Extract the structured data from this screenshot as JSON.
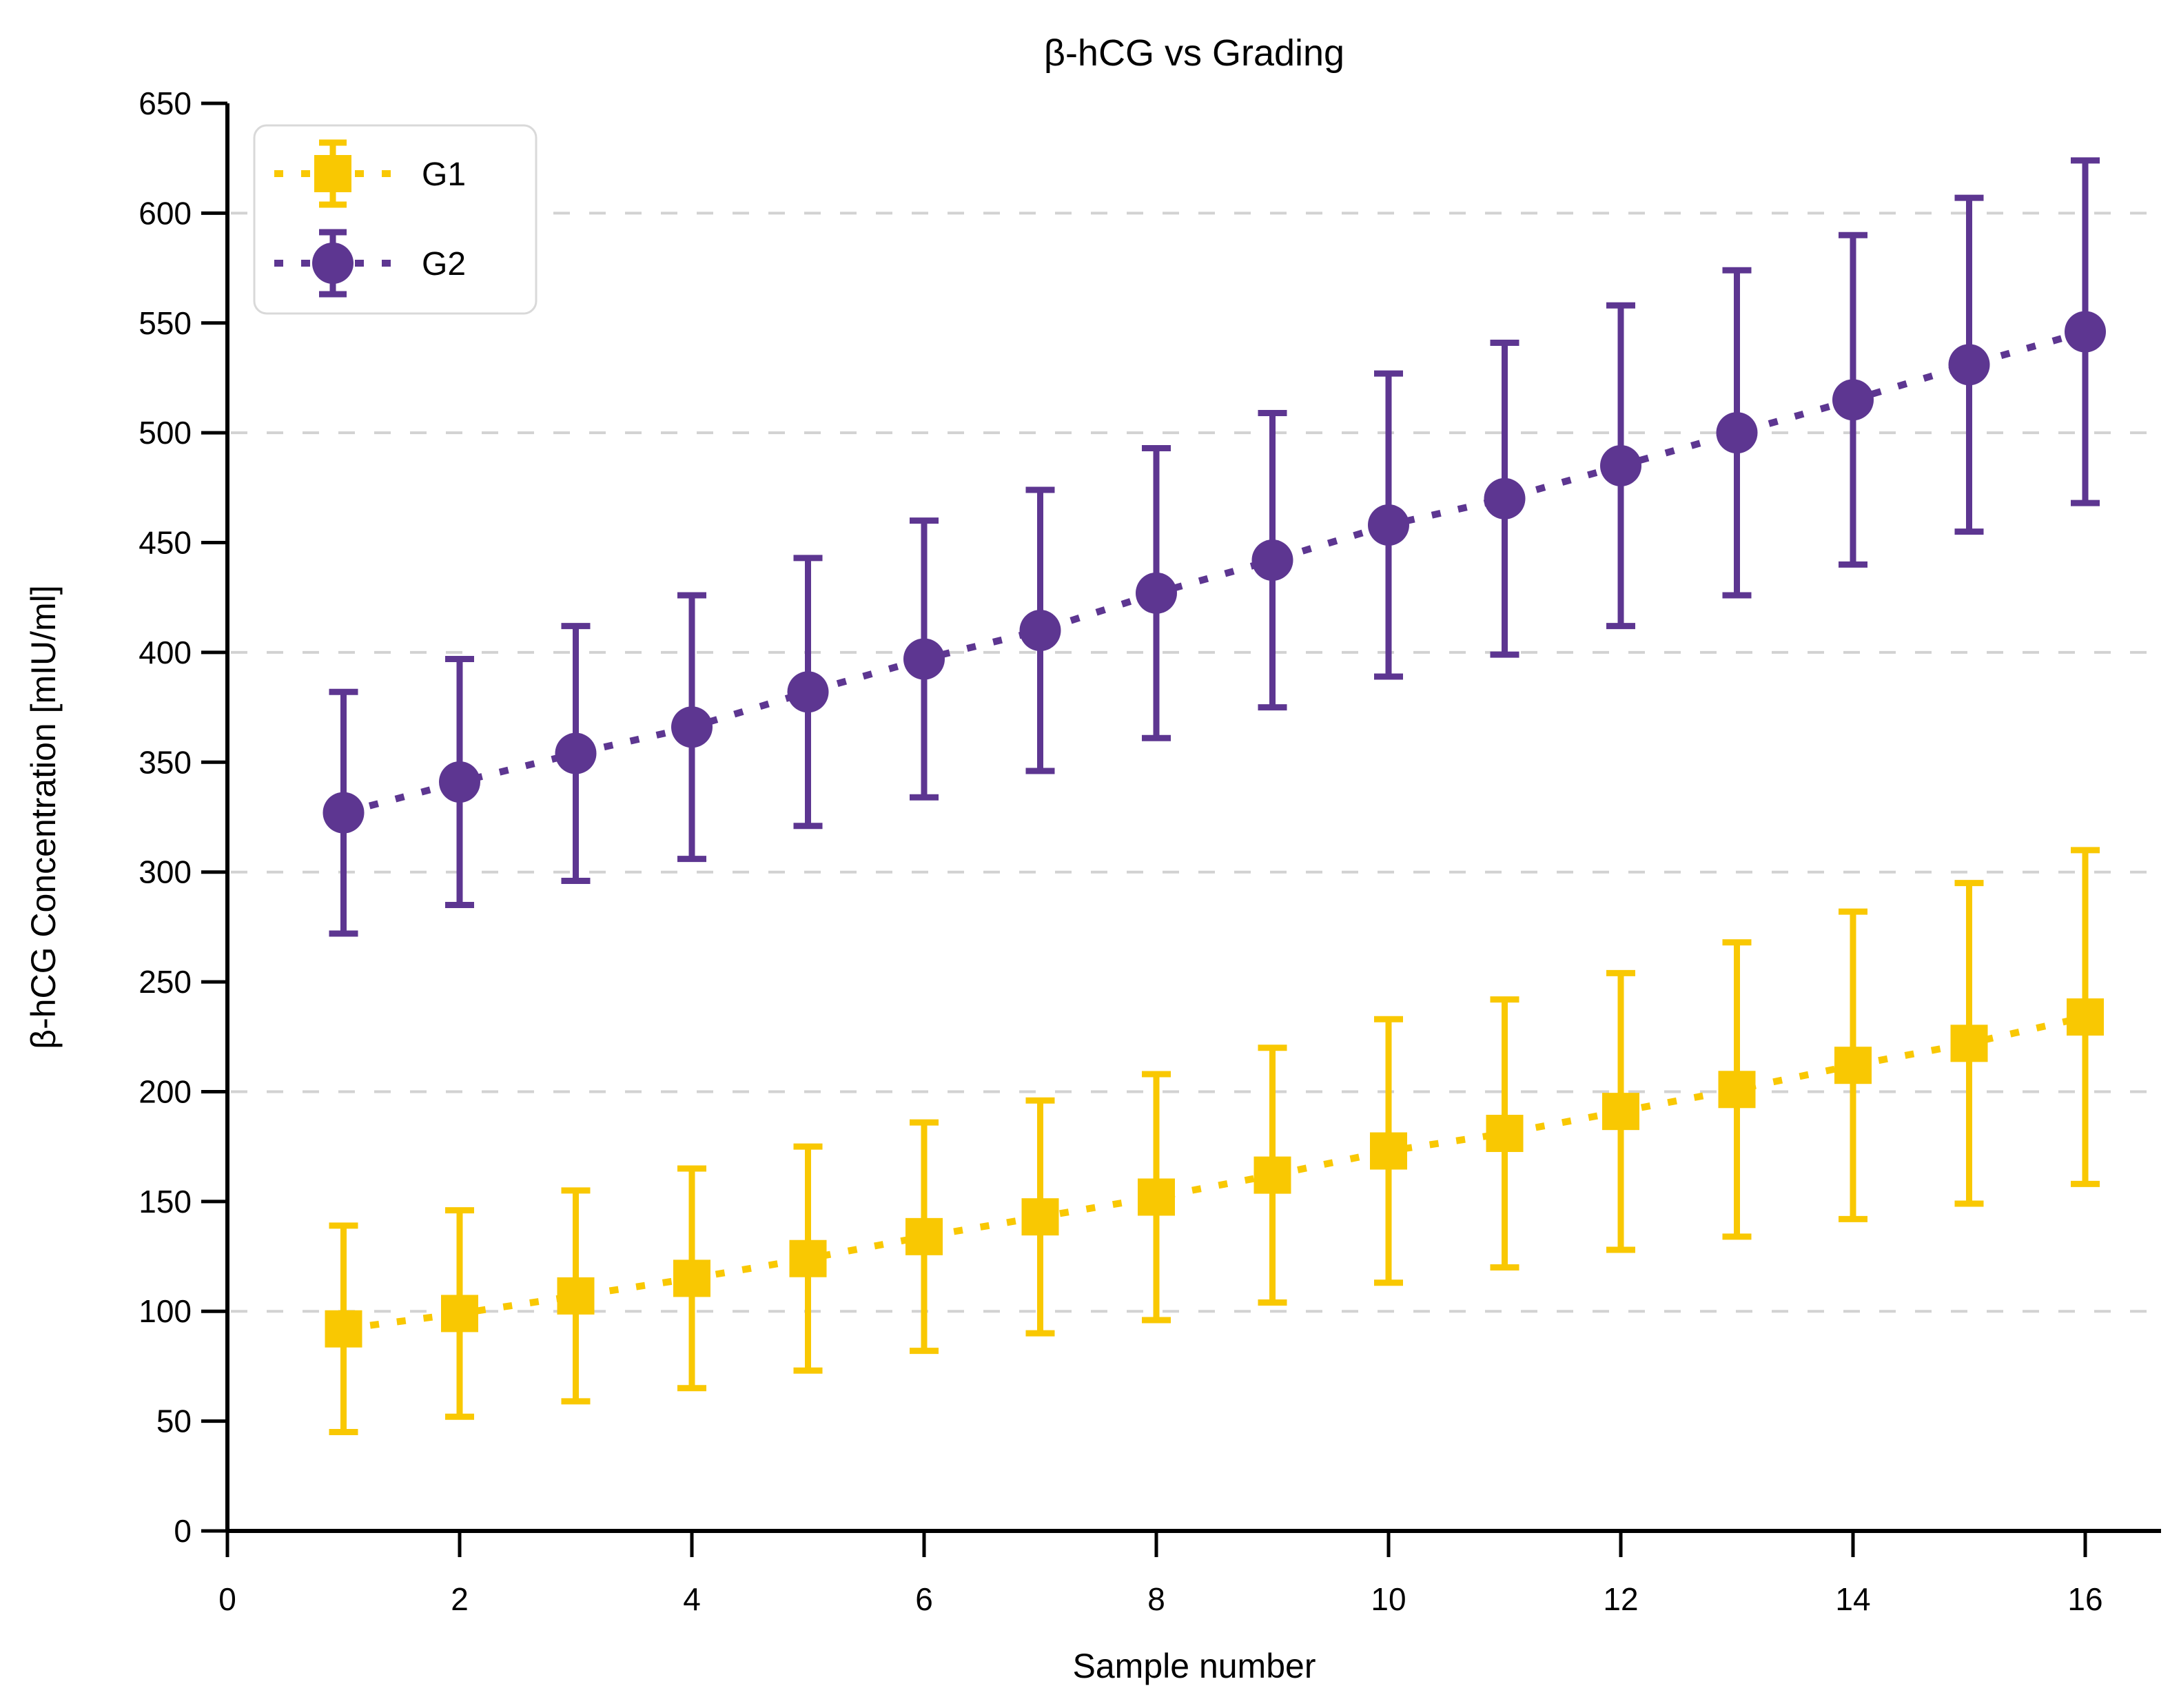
{
  "chart_data": {
    "type": "line",
    "title": "β-hCG vs Grading",
    "xlabel": "Sample number",
    "ylabel": "β-hCG Concentration [mIU/ml]",
    "xlim": [
      0,
      16.65
    ],
    "ylim": [
      0,
      650
    ],
    "x_ticks": [
      0,
      2,
      4,
      6,
      8,
      10,
      12,
      14,
      16
    ],
    "y_ticks": [
      0,
      50,
      100,
      150,
      200,
      250,
      300,
      350,
      400,
      450,
      500,
      550,
      600,
      650
    ],
    "gridlines_y": [
      100,
      200,
      300,
      400,
      500,
      600
    ],
    "grid": "horizontal-dashed",
    "legend_position": "upper-left",
    "x": [
      1,
      2,
      3,
      4,
      5,
      6,
      7,
      8,
      9,
      10,
      11,
      12,
      13,
      14,
      15,
      16
    ],
    "series": [
      {
        "name": "G1",
        "color": "#F9C802",
        "marker": "square",
        "linestyle": "dotted",
        "values": [
          92,
          99,
          107,
          115,
          124,
          134,
          143,
          152,
          162,
          173,
          181,
          191,
          201,
          212,
          222,
          234
        ],
        "err": [
          47,
          47,
          48,
          50,
          51,
          52,
          53,
          56,
          58,
          60,
          61,
          63,
          67,
          70,
          73,
          76
        ]
      },
      {
        "name": "G2",
        "color": "#5D3691",
        "marker": "circle",
        "linestyle": "dotted",
        "values": [
          327,
          341,
          354,
          366,
          382,
          397,
          410,
          427,
          442,
          458,
          470,
          485,
          500,
          515,
          531,
          546
        ],
        "err": [
          55,
          56,
          58,
          60,
          61,
          63,
          64,
          66,
          67,
          69,
          71,
          73,
          74,
          75,
          76,
          78
        ]
      }
    ]
  },
  "colors": {
    "g1": "#F9C802",
    "g2": "#5D3691",
    "gridline": "#d2d2d2",
    "axis": "#000000",
    "legend_border": "#d9d9d9",
    "background": "#ffffff"
  }
}
